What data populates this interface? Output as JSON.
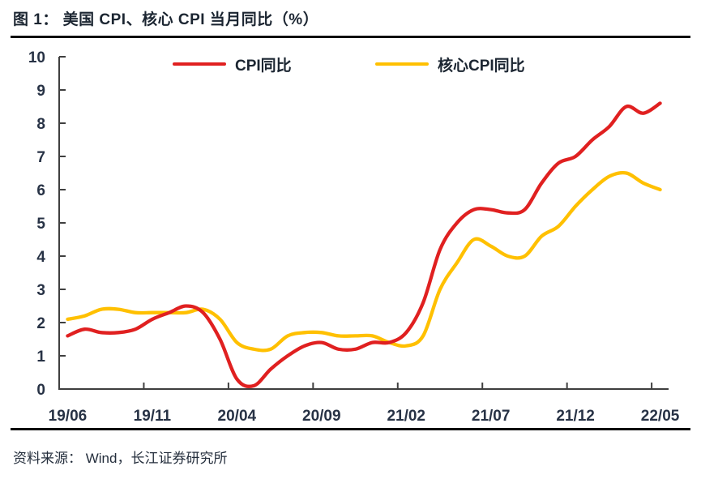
{
  "figure": {
    "title": "图 1： 美国 CPI、核心 CPI 当月同比（%）",
    "source": "资料来源： Wind，长江证券研究所"
  },
  "legend": [
    {
      "label": "CPI同比",
      "color": "#e02020"
    },
    {
      "label": "核心CPI同比",
      "color": "#ffc000"
    }
  ],
  "chart_data": {
    "type": "line",
    "title": "美国 CPI、核心 CPI 当月同比（%）",
    "xlabel": "",
    "ylabel": "",
    "ylim": [
      0,
      10
    ],
    "y_ticks": [
      0,
      1,
      2,
      3,
      4,
      5,
      6,
      7,
      8,
      9,
      10
    ],
    "grid": false,
    "smooth": true,
    "legend_position": "top",
    "axis_color": "#3f3f3f",
    "x": [
      "19/06",
      "19/07",
      "19/08",
      "19/09",
      "19/10",
      "19/11",
      "19/12",
      "20/01",
      "20/02",
      "20/03",
      "20/04",
      "20/05",
      "20/06",
      "20/07",
      "20/08",
      "20/09",
      "20/10",
      "20/11",
      "20/12",
      "21/01",
      "21/02",
      "21/03",
      "21/04",
      "21/05",
      "21/06",
      "21/07",
      "21/08",
      "21/09",
      "21/10",
      "21/11",
      "21/12",
      "22/01",
      "22/02",
      "22/03",
      "22/04",
      "22/05"
    ],
    "x_tick_labels": [
      "19/06",
      "19/11",
      "20/04",
      "20/09",
      "21/02",
      "21/07",
      "21/12",
      "22/05"
    ],
    "x_tick_every": 5,
    "series": [
      {
        "name": "CPI同比",
        "color": "#e02020",
        "values": [
          1.6,
          1.8,
          1.7,
          1.7,
          1.8,
          2.1,
          2.3,
          2.5,
          2.3,
          1.5,
          0.3,
          0.1,
          0.6,
          1.0,
          1.3,
          1.4,
          1.2,
          1.2,
          1.4,
          1.4,
          1.7,
          2.6,
          4.2,
          5.0,
          5.4,
          5.4,
          5.3,
          5.4,
          6.2,
          6.8,
          7.0,
          7.5,
          7.9,
          8.5,
          8.3,
          8.6
        ]
      },
      {
        "name": "核心CPI同比",
        "color": "#ffc000",
        "values": [
          2.1,
          2.2,
          2.4,
          2.4,
          2.3,
          2.3,
          2.3,
          2.3,
          2.4,
          2.1,
          1.4,
          1.2,
          1.2,
          1.6,
          1.7,
          1.7,
          1.6,
          1.6,
          1.6,
          1.4,
          1.3,
          1.6,
          3.0,
          3.8,
          4.5,
          4.3,
          4.0,
          4.0,
          4.6,
          4.9,
          5.5,
          6.0,
          6.4,
          6.5,
          6.2,
          6.0
        ]
      }
    ]
  }
}
